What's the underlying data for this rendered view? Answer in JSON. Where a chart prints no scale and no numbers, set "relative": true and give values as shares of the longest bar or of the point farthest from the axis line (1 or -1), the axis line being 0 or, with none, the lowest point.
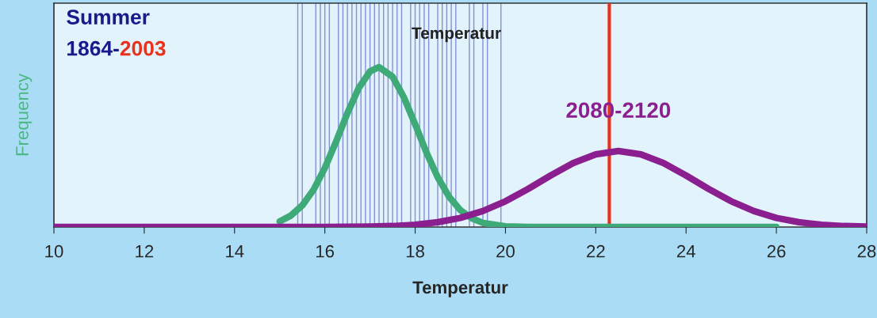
{
  "chart_data": {
    "type": "line",
    "relative": true,
    "xlabel": "Temperatur",
    "ylabel": "Frequency",
    "xlim": [
      10,
      28
    ],
    "xticks": [
      10,
      12,
      14,
      16,
      18,
      20,
      22,
      24,
      26,
      28
    ],
    "grid": false,
    "legend": false,
    "marker": "none",
    "line_style": "solid",
    "annotations": [
      "Summer",
      "1864-2003",
      "Temperatur"
    ],
    "series": [
      {
        "color": "#3daa78",
        "x": [
          15,
          15.25,
          15.5,
          15.75,
          16,
          16.25,
          16.5,
          16.75,
          17,
          17.2,
          17.5,
          17.75,
          18,
          18.25,
          18.5,
          18.75,
          19,
          19.25,
          19.5,
          20,
          20.5,
          21,
          22,
          26
        ],
        "values": [
          0.035,
          0.072,
          0.135,
          0.233,
          0.369,
          0.535,
          0.712,
          0.869,
          0.973,
          1,
          0.94,
          0.811,
          0.642,
          0.466,
          0.311,
          0.19,
          0.106,
          0.055,
          0.026,
          0.004,
          0,
          0,
          0,
          0
        ]
      },
      {
        "name": "2080-2120",
        "color": "#8b1f8f",
        "x": [
          10,
          14,
          15,
          16,
          17,
          17.5,
          18,
          18.5,
          19,
          19.5,
          20,
          20.5,
          21,
          21.5,
          22,
          22.5,
          23,
          23.5,
          24,
          24.5,
          25,
          25.5,
          26,
          26.5,
          27,
          27.5,
          28
        ],
        "values": [
          0,
          0,
          0,
          0,
          0.003,
          0.006,
          0.014,
          0.03,
          0.057,
          0.1,
          0.161,
          0.238,
          0.322,
          0.4,
          0.455,
          0.475,
          0.455,
          0.4,
          0.322,
          0.238,
          0.161,
          0.1,
          0.057,
          0.03,
          0.014,
          0.006,
          0.003
        ]
      }
    ],
    "ref_lines": [
      {
        "axis": "x",
        "value": 15.4,
        "color": "#3c3cb4"
      },
      {
        "axis": "x",
        "value": 15.5,
        "color": "#3c3cb4"
      },
      {
        "axis": "x",
        "value": 15.8,
        "color": "#3c3cb4"
      },
      {
        "axis": "x",
        "value": 15.9,
        "color": "#3c3cb4"
      },
      {
        "axis": "x",
        "value": 16.0,
        "color": "#3c3cb4"
      },
      {
        "axis": "x",
        "value": 16.1,
        "color": "#3c3cb4"
      },
      {
        "axis": "x",
        "value": 16.3,
        "color": "#3c3cb4"
      },
      {
        "axis": "x",
        "value": 16.4,
        "color": "#3c3cb4"
      },
      {
        "axis": "x",
        "value": 16.5,
        "color": "#3c3cb4"
      },
      {
        "axis": "x",
        "value": 16.6,
        "color": "#3c3cb4"
      },
      {
        "axis": "x",
        "value": 16.7,
        "color": "#3c3cb4"
      },
      {
        "axis": "x",
        "value": 16.8,
        "color": "#3c3cb4"
      },
      {
        "axis": "x",
        "value": 16.9,
        "color": "#3c3cb4"
      },
      {
        "axis": "x",
        "value": 17.0,
        "color": "#3c3cb4"
      },
      {
        "axis": "x",
        "value": 17.1,
        "color": "#3c3cb4"
      },
      {
        "axis": "x",
        "value": 17.2,
        "color": "#3c3cb4"
      },
      {
        "axis": "x",
        "value": 17.3,
        "color": "#3c3cb4"
      },
      {
        "axis": "x",
        "value": 17.4,
        "color": "#3c3cb4"
      },
      {
        "axis": "x",
        "value": 17.5,
        "color": "#3c3cb4"
      },
      {
        "axis": "x",
        "value": 17.6,
        "color": "#3c3cb4"
      },
      {
        "axis": "x",
        "value": 17.7,
        "color": "#3c3cb4"
      },
      {
        "axis": "x",
        "value": 17.9,
        "color": "#3c3cb4"
      },
      {
        "axis": "x",
        "value": 18.0,
        "color": "#3c3cb4"
      },
      {
        "axis": "x",
        "value": 18.1,
        "color": "#3c3cb4"
      },
      {
        "axis": "x",
        "value": 18.2,
        "color": "#3c3cb4"
      },
      {
        "axis": "x",
        "value": 18.3,
        "color": "#3c3cb4"
      },
      {
        "axis": "x",
        "value": 18.5,
        "color": "#3c3cb4"
      },
      {
        "axis": "x",
        "value": 18.6,
        "color": "#3c3cb4"
      },
      {
        "axis": "x",
        "value": 18.7,
        "color": "#3c3cb4"
      },
      {
        "axis": "x",
        "value": 18.8,
        "color": "#3c3cb4"
      },
      {
        "axis": "x",
        "value": 18.9,
        "color": "#3c3cb4"
      },
      {
        "axis": "x",
        "value": 19.2,
        "color": "#3c3cb4"
      },
      {
        "axis": "x",
        "value": 19.3,
        "color": "#3c3cb4"
      },
      {
        "axis": "x",
        "value": 19.5,
        "color": "#3c3cb4"
      },
      {
        "axis": "x",
        "value": 19.6,
        "color": "#3c3cb4"
      },
      {
        "axis": "x",
        "value": 19.9,
        "color": "#3c3cb4"
      },
      {
        "axis": "x",
        "value": 22.3,
        "color": "#e8321e"
      }
    ]
  }
}
